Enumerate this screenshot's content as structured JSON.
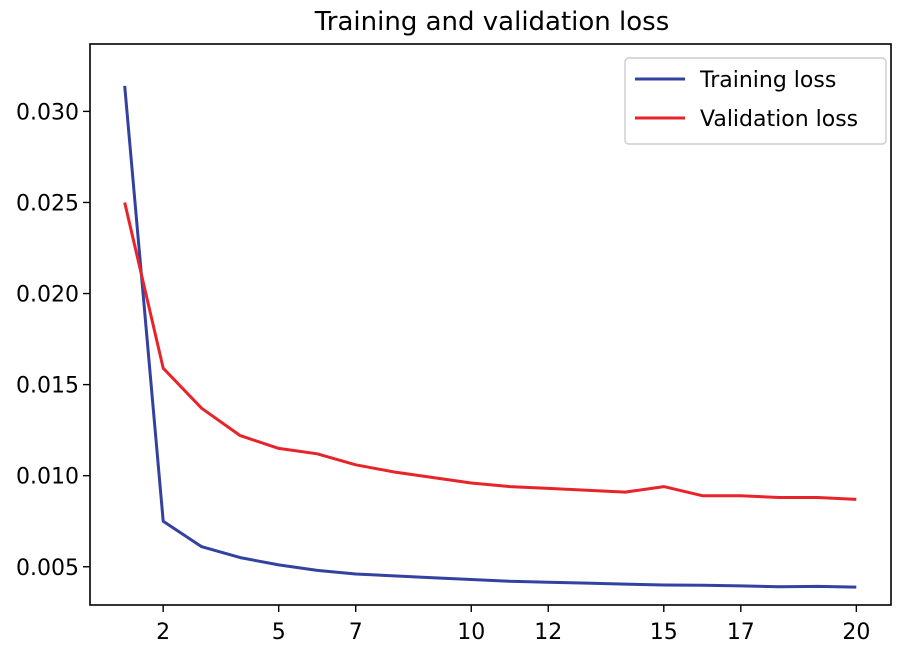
{
  "chart_data": {
    "type": "line",
    "title": "Training and validation loss",
    "xlabel": "",
    "ylabel": "",
    "xlim": [
      0.1,
      20.9
    ],
    "ylim": [
      0.0029,
      0.0337
    ],
    "x": [
      1,
      2,
      3,
      4,
      5,
      6,
      7,
      8,
      9,
      10,
      11,
      12,
      13,
      14,
      15,
      16,
      17,
      18,
      19,
      20
    ],
    "x_ticks": [
      2,
      5,
      7,
      10,
      12,
      15,
      17,
      20
    ],
    "x_tick_labels": [
      "2",
      "5",
      "7",
      "10",
      "12",
      "15",
      "17",
      "20"
    ],
    "y_ticks": [
      0.005,
      0.01,
      0.015,
      0.02,
      0.025,
      0.03
    ],
    "y_tick_labels": [
      "0.005",
      "0.010",
      "0.015",
      "0.020",
      "0.025",
      "0.030"
    ],
    "legend_position": "top-right",
    "series": [
      {
        "name": "Training loss",
        "color": "#3341a0",
        "values": [
          0.0314,
          0.0075,
          0.0061,
          0.0055,
          0.0051,
          0.0048,
          0.0046,
          0.0045,
          0.0044,
          0.0043,
          0.0042,
          0.00415,
          0.0041,
          0.00405,
          0.004,
          0.00398,
          0.00395,
          0.0039,
          0.00392,
          0.00388
        ]
      },
      {
        "name": "Validation loss",
        "color": "#e8232a",
        "values": [
          0.025,
          0.0159,
          0.0137,
          0.0122,
          0.0115,
          0.0112,
          0.0106,
          0.0102,
          0.0099,
          0.0096,
          0.0094,
          0.0093,
          0.0092,
          0.0091,
          0.0094,
          0.0089,
          0.0089,
          0.0088,
          0.0088,
          0.0087
        ]
      }
    ]
  }
}
